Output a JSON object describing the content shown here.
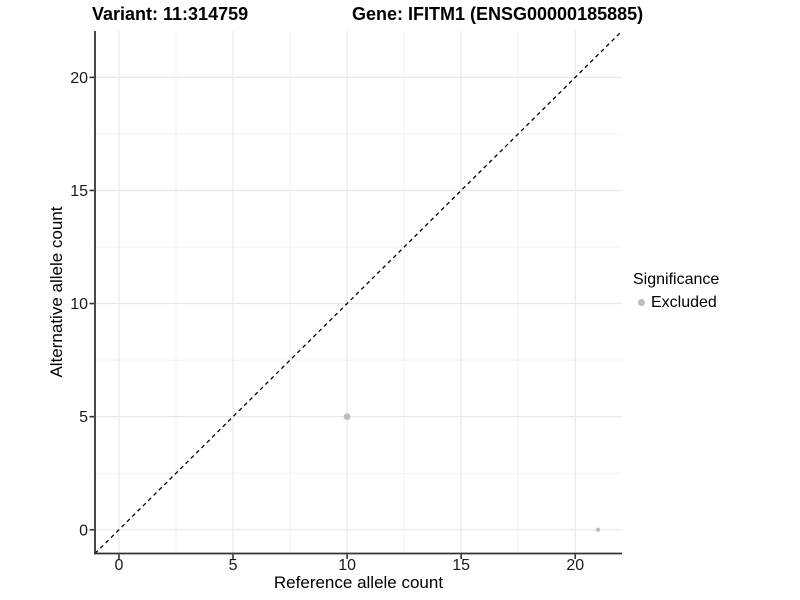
{
  "chart_data": {
    "type": "scatter",
    "title_variant": "Variant: 11:314759",
    "title_gene": "Gene: IFITM1 (ENSG00000185885)",
    "xlabel": "Reference allele count",
    "ylabel": "Alternative allele count",
    "xlim": [
      -1.05,
      22.05
    ],
    "ylim": [
      -1.05,
      22.05
    ],
    "xticks": [
      0,
      5,
      10,
      15,
      20
    ],
    "yticks": [
      0,
      5,
      10,
      15,
      20
    ],
    "minor_gridlines_x": [
      2.5,
      7.5,
      12.5,
      17.5
    ],
    "minor_gridlines_y": [
      2.5,
      7.5,
      12.5,
      17.5
    ],
    "grid": true,
    "points": [
      {
        "x": 10,
        "y": 5,
        "r": 3.4,
        "significance": "Excluded"
      },
      {
        "x": 21,
        "y": 0,
        "r": 2.1,
        "significance": "Excluded"
      }
    ],
    "reference_line": {
      "type": "identity",
      "slope": 1,
      "intercept": 0,
      "linestyle": "dashed"
    },
    "legend": {
      "title": "Significance",
      "position": "right",
      "items": [
        {
          "label": "Excluded",
          "color": "#bdbdbd"
        }
      ]
    },
    "colors": {
      "background": "#ffffff",
      "point": "#bdbdbd",
      "grid_major": "#e8e8e8",
      "grid_minor": "#f2f2f2",
      "axis_line": "#333333",
      "tick_text": "#1a1a1a",
      "title_text": "#000000",
      "dashed_line": "#000000"
    }
  }
}
